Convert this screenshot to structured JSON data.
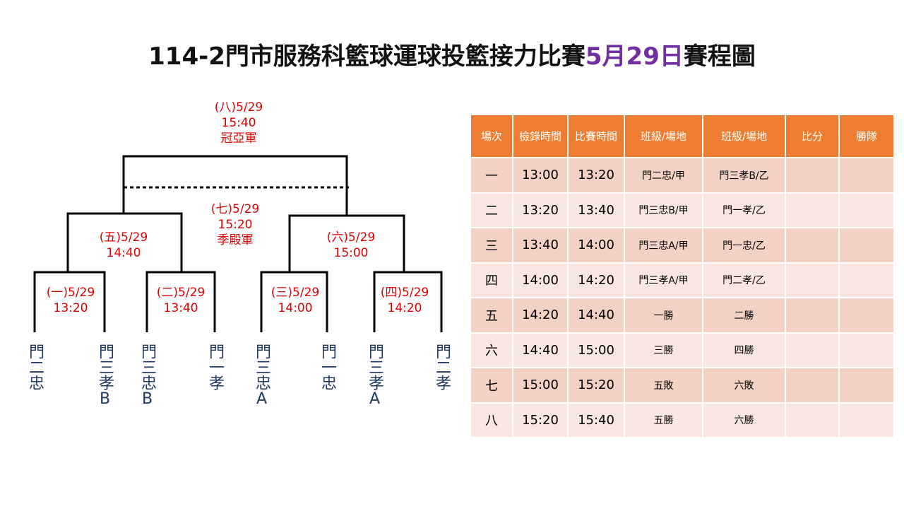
{
  "title": {
    "main": "114-2門市服務科籃球運球投籃接力比賽",
    "date": "5月29日",
    "suffix": "賽程圖"
  },
  "bracket": {
    "matches": [
      {
        "lines": [
          "(八)5/29",
          "15:40",
          "冠亞軍"
        ]
      },
      {
        "lines": [
          "(七)5/29",
          "15:20",
          "季殿軍"
        ]
      },
      {
        "lines": [
          "(五)5/29",
          "14:40"
        ]
      },
      {
        "lines": [
          "(六)5/29",
          "15:00"
        ]
      },
      {
        "lines": [
          "(一)5/29",
          "13:20"
        ]
      },
      {
        "lines": [
          "(二)5/29",
          "13:40"
        ]
      },
      {
        "lines": [
          "(三)5/29",
          "14:00"
        ]
      },
      {
        "lines": [
          "(四)5/29",
          "14:20"
        ]
      }
    ],
    "teams": [
      "門二忠",
      "門三孝B",
      "門三忠B",
      "門一孝",
      "門三忠A",
      "門一忠",
      "門三孝A",
      "門二孝"
    ]
  },
  "table": {
    "header": [
      "場次",
      "檢錄時間",
      "比賽時間",
      "班級/場地",
      "班級/場地",
      "比分",
      "勝隊"
    ],
    "rows": [
      [
        "一",
        "13:00",
        "13:20",
        "門二忠/甲",
        "門三孝B/乙"
      ],
      [
        "二",
        "13:20",
        "13:40",
        "門三忠B/甲",
        "門一孝/乙"
      ],
      [
        "三",
        "13:40",
        "14:00",
        "門三忠A/甲",
        "門一忠/乙"
      ],
      [
        "四",
        "14:00",
        "14:20",
        "門三孝A/甲",
        "門二孝/乙"
      ],
      [
        "五",
        "14:20",
        "14:40",
        "一勝",
        "二勝"
      ],
      [
        "六",
        "14:40",
        "15:00",
        "三勝",
        "四勝"
      ],
      [
        "七",
        "15:00",
        "15:20",
        "五敗",
        "六敗"
      ],
      [
        "八",
        "15:20",
        "15:40",
        "五勝",
        "六勝"
      ]
    ]
  }
}
